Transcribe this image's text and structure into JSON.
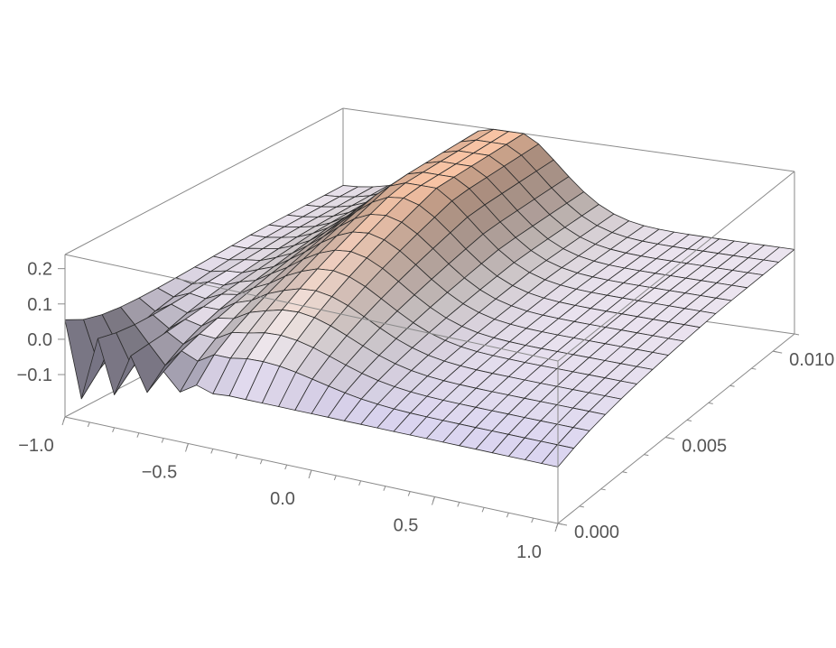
{
  "chart_data": {
    "type": "surface3d",
    "title": "",
    "xlabel": "",
    "ylabel": "",
    "zlabel": "",
    "xlim": [
      -1.0,
      1.0
    ],
    "ylim": [
      0.0,
      0.011
    ],
    "zlim": [
      -0.22,
      0.24
    ],
    "x_ticks": [
      {
        "value": -1.0,
        "label": "−1.0"
      },
      {
        "value": -0.5,
        "label": "−0.5"
      },
      {
        "value": 0.0,
        "label": "0.0"
      },
      {
        "value": 0.5,
        "label": "0.5"
      },
      {
        "value": 1.0,
        "label": "1.0"
      }
    ],
    "y_ticks": [
      {
        "value": 0.0,
        "label": "0.000"
      },
      {
        "value": 0.005,
        "label": "0.005"
      },
      {
        "value": 0.01,
        "label": "0.010"
      }
    ],
    "z_ticks": [
      {
        "value": -0.1,
        "label": "−0.1"
      },
      {
        "value": 0.0,
        "label": "0.0"
      },
      {
        "value": 0.1,
        "label": "0.1"
      },
      {
        "value": 0.2,
        "label": "0.2"
      }
    ],
    "mesh": {
      "x_lines": 30,
      "y_lines": 15
    },
    "surface_model": {
      "peak_height": 0.24,
      "peak_x": -0.28,
      "peak_width": 0.33,
      "peak_y_scale": 0.0075,
      "plateau_height": 0.02,
      "oscillation_amplitude": 0.15,
      "oscillation_frequency": 48
    },
    "colors": {
      "high": "#f7c3a4",
      "mid": "#f4ecee",
      "low": "#d9d3f0",
      "deep": "#7a3b4e",
      "mesh": "#2a2a2a",
      "box": "#8a8a8a",
      "tick_label": "#555555"
    }
  }
}
